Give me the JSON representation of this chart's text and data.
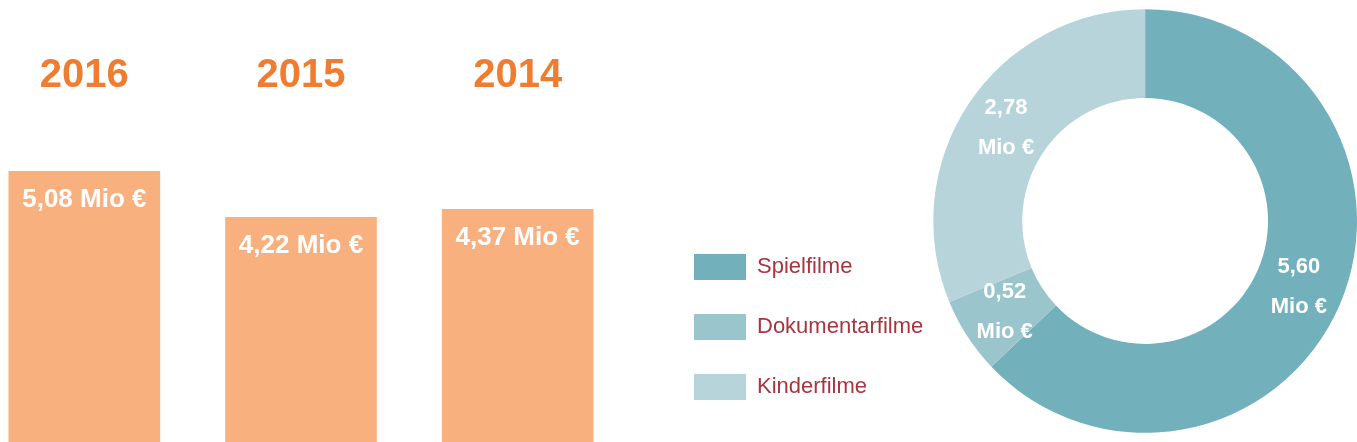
{
  "chart_data": [
    {
      "type": "bar",
      "categories": [
        "2016",
        "2015",
        "2014"
      ],
      "values": [
        5.08,
        4.22,
        4.37
      ],
      "color": "#f8b07f",
      "value_labels": [
        "5,08 Mio €",
        "4,22 Mio €",
        "4,37 Mio €"
      ],
      "grid": false,
      "legend": false
    },
    {
      "type": "donut",
      "categories": [
        "Spielfilme",
        "Dokumentarfilme",
        "Kinderfilme"
      ],
      "values": [
        5.6,
        0.52,
        2.78
      ],
      "colors": [
        "#72b1bb",
        "#9ac5cc",
        "#b6d4da"
      ],
      "value_labels": [
        "5,60 Mio €",
        "0,52 Mio €",
        "2,78 Mio €"
      ],
      "legend": "left"
    }
  ]
}
